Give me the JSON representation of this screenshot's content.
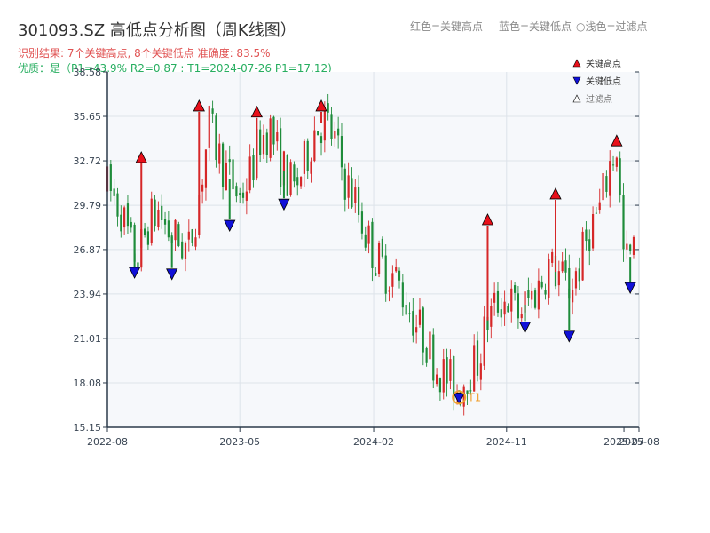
{
  "header": {
    "title": "301093.SZ 高低点分析图（周K线图）",
    "result_line": "识别结果: 7个关键高点, 8个关键低点  准确度: 83.5%",
    "quality_line": "优质：是（P1=43.9%  R2=0.87 ; T1=2024-07-26 P1=17.12)"
  },
  "top_legend": {
    "red": "红色=关键高点",
    "blue": "蓝色=关键低点",
    "light": "浅色=过滤点"
  },
  "legend": {
    "high": "关键高点",
    "low": "关键低点",
    "filtered": "过滤点"
  },
  "colors": {
    "up": "#d62728",
    "down": "#1e8c3a",
    "high_marker": "#e8101a",
    "low_marker": "#1010d8",
    "t1_marker": "#f0a030",
    "plot_bg": "#f6f8fb",
    "grid": "#dde3ea"
  },
  "chart_data": {
    "type": "candlestick",
    "title": "301093.SZ 高低点分析图（周K线图）",
    "ylim": [
      15.15,
      38.58
    ],
    "yticks": [
      15.15,
      18.08,
      21.01,
      23.94,
      26.87,
      29.79,
      32.72,
      35.65,
      38.58
    ],
    "ytick_labels": [
      "15.15",
      "18.08",
      "21.01",
      "23.94",
      "26.87",
      "29.79",
      "32.72",
      "35.65",
      "38.58"
    ],
    "xlim": [
      "2022-08-01",
      "2025-08-01"
    ],
    "xticks": [
      "2022-08-01",
      "2023-05-01",
      "2024-02-01",
      "2024-11-01",
      "2025-07-01",
      "2025-08-01"
    ],
    "xtick_labels": [
      "2022-08",
      "2023-05",
      "2024-02",
      "2024-11",
      "2025-07",
      "2025-08"
    ],
    "grid": true,
    "price_path": [
      [
        "2022-08-01",
        31.0
      ],
      [
        "2022-08-29",
        29.5
      ],
      [
        "2022-09-19",
        27.0
      ],
      [
        "2022-10-03",
        26.2
      ],
      [
        "2022-10-24",
        28.6
      ],
      [
        "2022-11-14",
        29.4
      ],
      [
        "2022-12-05",
        28.0
      ],
      [
        "2023-01-02",
        27.2
      ],
      [
        "2023-01-16",
        26.8
      ],
      [
        "2023-02-06",
        30.5
      ],
      [
        "2023-02-27",
        35.0
      ],
      [
        "2023-03-20",
        33.0
      ],
      [
        "2023-04-10",
        31.5
      ],
      [
        "2023-05-01",
        30.3
      ],
      [
        "2023-05-22",
        31.8
      ],
      [
        "2023-06-12",
        34.2
      ],
      [
        "2023-07-03",
        34.8
      ],
      [
        "2023-07-24",
        32.5
      ],
      [
        "2023-08-21",
        30.8
      ],
      [
        "2023-09-11",
        32.5
      ],
      [
        "2023-10-02",
        34.8
      ],
      [
        "2023-10-23",
        35.4
      ],
      [
        "2023-11-13",
        34.0
      ],
      [
        "2023-12-04",
        31.5
      ],
      [
        "2023-12-25",
        30.0
      ],
      [
        "2024-01-15",
        28.0
      ],
      [
        "2024-02-05",
        26.3
      ],
      [
        "2024-02-26",
        25.5
      ],
      [
        "2024-03-18",
        25.0
      ],
      [
        "2024-04-08",
        23.4
      ],
      [
        "2024-04-29",
        22.0
      ],
      [
        "2024-05-20",
        20.8
      ],
      [
        "2024-06-10",
        19.2
      ],
      [
        "2024-07-01",
        18.4
      ],
      [
        "2024-07-26",
        17.6
      ],
      [
        "2024-08-12",
        18.8
      ],
      [
        "2024-09-02",
        19.5
      ],
      [
        "2024-09-23",
        22.2
      ],
      [
        "2024-10-14",
        23.4
      ],
      [
        "2024-11-04",
        23.6
      ],
      [
        "2024-11-25",
        22.7
      ],
      [
        "2024-12-16",
        23.5
      ],
      [
        "2025-01-06",
        24.4
      ],
      [
        "2025-01-27",
        25.8
      ],
      [
        "2025-02-17",
        25.2
      ],
      [
        "2025-03-10",
        24.3
      ],
      [
        "2025-03-31",
        25.8
      ],
      [
        "2025-04-21",
        28.2
      ],
      [
        "2025-05-12",
        29.5
      ],
      [
        "2025-06-02",
        32.5
      ],
      [
        "2025-06-16",
        33.6
      ],
      [
        "2025-07-01",
        26.0
      ],
      [
        "2025-07-21",
        26.6
      ]
    ],
    "key_highs": [
      {
        "date": "2022-10-10",
        "price": 32.9
      },
      {
        "date": "2023-02-06",
        "price": 36.3
      },
      {
        "date": "2023-06-05",
        "price": 35.9
      },
      {
        "date": "2023-10-16",
        "price": 36.3
      },
      {
        "date": "2024-09-23",
        "price": 28.8
      },
      {
        "date": "2025-02-10",
        "price": 30.5
      },
      {
        "date": "2025-06-16",
        "price": 34.0
      }
    ],
    "key_lows": [
      {
        "date": "2022-09-26",
        "price": 25.4
      },
      {
        "date": "2022-12-12",
        "price": 25.3
      },
      {
        "date": "2023-04-10",
        "price": 28.5
      },
      {
        "date": "2023-07-31",
        "price": 29.9
      },
      {
        "date": "2024-07-26",
        "price": 17.12
      },
      {
        "date": "2024-12-09",
        "price": 21.8
      },
      {
        "date": "2025-03-10",
        "price": 21.2
      },
      {
        "date": "2025-07-14",
        "price": 24.4
      }
    ],
    "annotations": [
      {
        "label": "T1",
        "date": "2024-07-26",
        "price": 17.12
      }
    ]
  }
}
